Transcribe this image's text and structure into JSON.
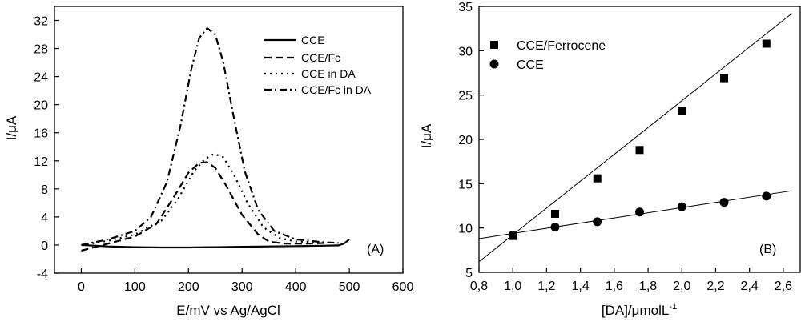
{
  "chart_data": [
    {
      "type": "line",
      "panel_label": "(A)",
      "xlabel": "E/mV vs Ag/AgCl",
      "ylabel_prefix": "I/",
      "ylabel_mu": "μ",
      "ylabel_suffix": "A",
      "xlim": [
        -50,
        600
      ],
      "ylim": [
        -4,
        34
      ],
      "x_ticks": [
        0,
        100,
        200,
        300,
        400,
        500,
        600
      ],
      "x_tick_labels": [
        "0",
        "100",
        "200",
        "300",
        "400",
        "500",
        "600"
      ],
      "y_ticks": [
        -4,
        0,
        4,
        8,
        12,
        16,
        20,
        24,
        28,
        32
      ],
      "y_tick_labels": [
        "-4",
        "0",
        "4",
        "8",
        "12",
        "16",
        "20",
        "24",
        "28",
        "32"
      ],
      "legend_position": "top-right",
      "series": [
        {
          "name": "CCE",
          "dash": "solid",
          "x": [
            0,
            50,
            100,
            150,
            200,
            250,
            300,
            350,
            400,
            450,
            480,
            490,
            500
          ],
          "y": [
            0.0,
            -0.2,
            -0.3,
            -0.35,
            -0.35,
            -0.3,
            -0.25,
            -0.2,
            -0.15,
            -0.1,
            -0.05,
            0.2,
            0.8
          ]
        },
        {
          "name": "CCE/Fc",
          "dash": "dash",
          "x": [
            0,
            50,
            100,
            140,
            170,
            200,
            220,
            235,
            250,
            270,
            300,
            330,
            350,
            380,
            420,
            460
          ],
          "y": [
            -0.8,
            0.2,
            1.2,
            3.0,
            6.5,
            10.3,
            11.7,
            11.8,
            11.0,
            8.5,
            4.3,
            1.5,
            0.5,
            0.2,
            0.2,
            0.3
          ]
        },
        {
          "name": "CCE in DA",
          "dash": "dot",
          "x": [
            0,
            50,
            100,
            150,
            180,
            210,
            230,
            248,
            265,
            285,
            310,
            340,
            370,
            400,
            450
          ],
          "y": [
            0.0,
            0.6,
            1.5,
            3.5,
            6.5,
            10.5,
            12.2,
            13.0,
            12.5,
            10.0,
            6.0,
            2.5,
            1.0,
            0.5,
            0.3
          ]
        },
        {
          "name": "CCE/Fc in DA",
          "dash": "dashdot",
          "x": [
            0,
            50,
            100,
            130,
            160,
            185,
            205,
            220,
            235,
            250,
            265,
            285,
            305,
            330,
            360,
            400,
            450,
            480
          ],
          "y": [
            0.0,
            0.8,
            2.0,
            4.0,
            9.0,
            17.0,
            25.0,
            29.5,
            30.9,
            30.0,
            26.0,
            18.0,
            10.5,
            5.0,
            2.0,
            0.8,
            0.4,
            0.3
          ]
        }
      ]
    },
    {
      "type": "scatter",
      "panel_label": "(B)",
      "xlabel_prefix": "[DA]/",
      "xlabel_mu": "μ",
      "xlabel_unit": "molL",
      "xlabel_exp": "-1",
      "ylabel_prefix": "I/",
      "ylabel_mu": "μ",
      "ylabel_suffix": "A",
      "xlim": [
        0.8,
        2.7
      ],
      "ylim": [
        5,
        35
      ],
      "x_ticks": [
        0.8,
        1.0,
        1.2,
        1.4,
        1.6,
        1.8,
        2.0,
        2.2,
        2.4,
        2.6
      ],
      "x_tick_labels": [
        "0,8",
        "1,0",
        "1,2",
        "1,4",
        "1,6",
        "1,8",
        "2,0",
        "2,2",
        "2,4",
        "2,6"
      ],
      "y_ticks": [
        5,
        10,
        15,
        20,
        25,
        30,
        35
      ],
      "y_tick_labels": [
        "5",
        "10",
        "15",
        "20",
        "25",
        "30",
        "35"
      ],
      "legend_position": "top-left",
      "series": [
        {
          "name": "CCE/Ferrocene",
          "marker": "square",
          "x": [
            1.0,
            1.25,
            1.5,
            1.75,
            2.0,
            2.25,
            2.5
          ],
          "y": [
            9.1,
            11.6,
            15.6,
            18.8,
            23.2,
            26.9,
            30.8
          ],
          "fit": {
            "x": [
              0.8,
              2.65
            ],
            "y": [
              6.2,
              34.2
            ]
          }
        },
        {
          "name": "CCE",
          "marker": "circle",
          "x": [
            1.0,
            1.25,
            1.5,
            1.75,
            2.0,
            2.25,
            2.5
          ],
          "y": [
            9.2,
            10.1,
            10.7,
            11.8,
            12.4,
            12.9,
            13.6
          ],
          "fit": {
            "x": [
              0.8,
              2.65
            ],
            "y": [
              8.8,
              14.2
            ]
          }
        }
      ]
    }
  ]
}
